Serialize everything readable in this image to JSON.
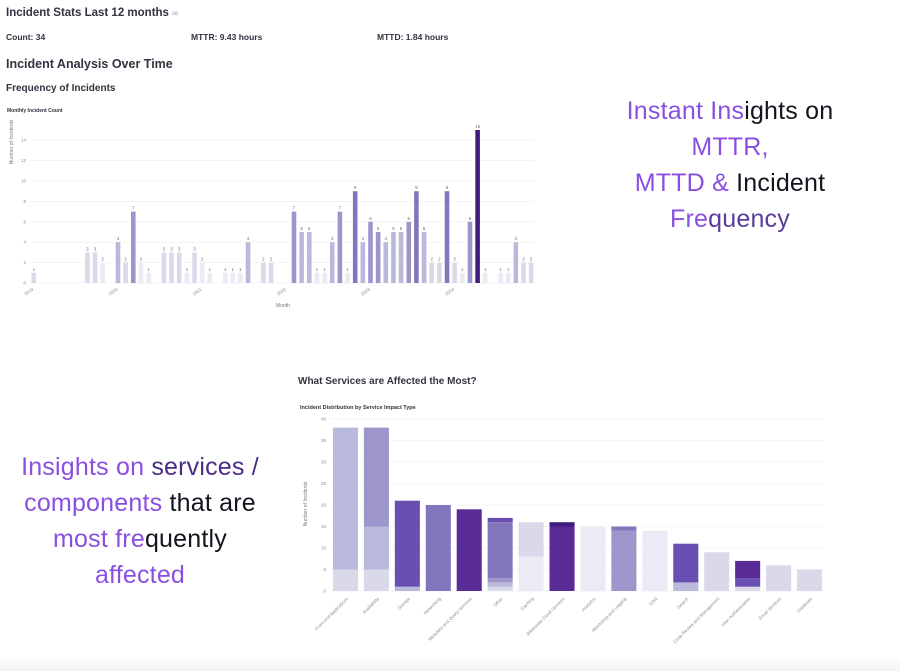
{
  "stats": {
    "title": "Incident Stats Last 12 months",
    "link_glyph": "∞",
    "count": "Count: 34",
    "mttr": "MTTR: 9.43 hours",
    "mttd": "MTTD: 1.84 hours"
  },
  "section_title": "Incident Analysis Over Time",
  "frequency_title": "Frequency of Incidents",
  "services_title": "What Services are Affected the Most?",
  "promo1": {
    "line1a": "Instant Ins",
    "line1b": "ights on",
    "line2": "MTTR,",
    "line3a": "MTTD &",
    "line3b": " Incident",
    "line4a": "Fre",
    "line4b": "quency"
  },
  "promo2": {
    "line1a": "Insights on ",
    "line1b": "services /",
    "line2a": "components ",
    "line2b": "that are",
    "line3a": "most fre",
    "line3b": "quently",
    "line4": "affected"
  },
  "colors": {
    "c1": "#ebeaf5",
    "c2": "#d9d9ea",
    "c3": "#b9b9dc",
    "c4": "#9d96cc",
    "c5": "#8277bc",
    "c6": "#6a4fb2",
    "c7": "#5a2b96",
    "c8": "#421b80"
  },
  "chart_data": [
    {
      "type": "bar",
      "title": "Monthly Incident Count",
      "xlabel": "Month",
      "ylabel": "Number of Incidents",
      "ylim": [
        0,
        15
      ],
      "yticks": [
        0,
        2,
        4,
        6,
        8,
        10,
        12,
        14
      ],
      "xticks": [
        {
          "label": "2019",
          "index": 0
        },
        {
          "label": "2020",
          "index": 11
        },
        {
          "label": "2021",
          "index": 22
        },
        {
          "label": "2022",
          "index": 33
        },
        {
          "label": "2023",
          "index": 44
        },
        {
          "label": "2024",
          "index": 55
        }
      ],
      "values": [
        1,
        0,
        0,
        0,
        0,
        0,
        0,
        3,
        3,
        2,
        0,
        4,
        2,
        7,
        2,
        1,
        0,
        3,
        3,
        3,
        1,
        3,
        2,
        1,
        0,
        1,
        1,
        1,
        4,
        0,
        2,
        2,
        0,
        0,
        7,
        5,
        5,
        1,
        1,
        4,
        7,
        1,
        9,
        4,
        6,
        5,
        4,
        5,
        5,
        6,
        9,
        5,
        2,
        2,
        9,
        2,
        1,
        6,
        15,
        1,
        0,
        1,
        1,
        4,
        2,
        2
      ],
      "shade_levels": [
        2,
        0,
        0,
        0,
        0,
        0,
        0,
        2,
        2,
        1,
        0,
        3,
        2,
        4,
        1,
        1,
        0,
        2,
        2,
        2,
        1,
        2,
        1,
        1,
        0,
        1,
        1,
        1,
        3,
        0,
        2,
        2,
        0,
        0,
        4,
        3,
        3,
        1,
        1,
        3,
        4,
        1,
        5,
        3,
        4,
        4,
        3,
        3,
        3,
        4,
        5,
        3,
        2,
        2,
        5,
        2,
        1,
        4,
        8,
        1,
        0,
        1,
        1,
        3,
        2,
        2
      ]
    },
    {
      "type": "bar",
      "stacked": true,
      "title": "Incident Distribution by Service Impact Type",
      "xlabel": "",
      "ylabel": "Number of Incidents",
      "ylim": [
        0,
        40
      ],
      "yticks": [
        0,
        5,
        10,
        15,
        20,
        25,
        30,
        35,
        40
      ],
      "categories": [
        "Front-end Applications",
        "Availability",
        "Storage",
        "Networking",
        "Metadata and Query Services",
        "Other",
        "Caching",
        "Wikimedia Cloud Services",
        "Analytics",
        "Monitoring and Logging",
        "CDN",
        "Search",
        "Code Review and Management",
        "User Authentication",
        "Email Services",
        "Database"
      ],
      "stacks": [
        [
          {
            "value": 5,
            "shade": "c2"
          },
          {
            "value": 33,
            "shade": "c3"
          }
        ],
        [
          {
            "value": 5,
            "shade": "c2"
          },
          {
            "value": 10,
            "shade": "c3"
          },
          {
            "value": 23,
            "shade": "c4"
          }
        ],
        [
          {
            "value": 1,
            "shade": "c3"
          },
          {
            "value": 20,
            "shade": "c6"
          }
        ],
        [
          {
            "value": 20,
            "shade": "c5"
          }
        ],
        [
          {
            "value": 19,
            "shade": "c7"
          }
        ],
        [
          {
            "value": 1,
            "shade": "c2"
          },
          {
            "value": 1,
            "shade": "c3"
          },
          {
            "value": 1,
            "shade": "c4"
          },
          {
            "value": 2,
            "shade": "c5"
          },
          {
            "value": 11,
            "shade": "c5"
          },
          {
            "value": 1,
            "shade": "c6"
          }
        ],
        [
          {
            "value": 8,
            "shade": "c1"
          },
          {
            "value": 8,
            "shade": "c2"
          }
        ],
        [
          {
            "value": 15,
            "shade": "c7"
          },
          {
            "value": 1,
            "shade": "c8"
          }
        ],
        [
          {
            "value": 15,
            "shade": "c1"
          }
        ],
        [
          {
            "value": 14,
            "shade": "c4"
          },
          {
            "value": 1,
            "shade": "c5"
          }
        ],
        [
          {
            "value": 14,
            "shade": "c1"
          }
        ],
        [
          {
            "value": 2,
            "shade": "c3"
          },
          {
            "value": 9,
            "shade": "c6"
          }
        ],
        [
          {
            "value": 9,
            "shade": "c2"
          }
        ],
        [
          {
            "value": 1,
            "shade": "c2"
          },
          {
            "value": 2,
            "shade": "c6"
          },
          {
            "value": 4,
            "shade": "c7"
          }
        ],
        [
          {
            "value": 6,
            "shade": "c2"
          }
        ],
        [
          {
            "value": 5,
            "shade": "c2"
          }
        ]
      ]
    }
  ]
}
